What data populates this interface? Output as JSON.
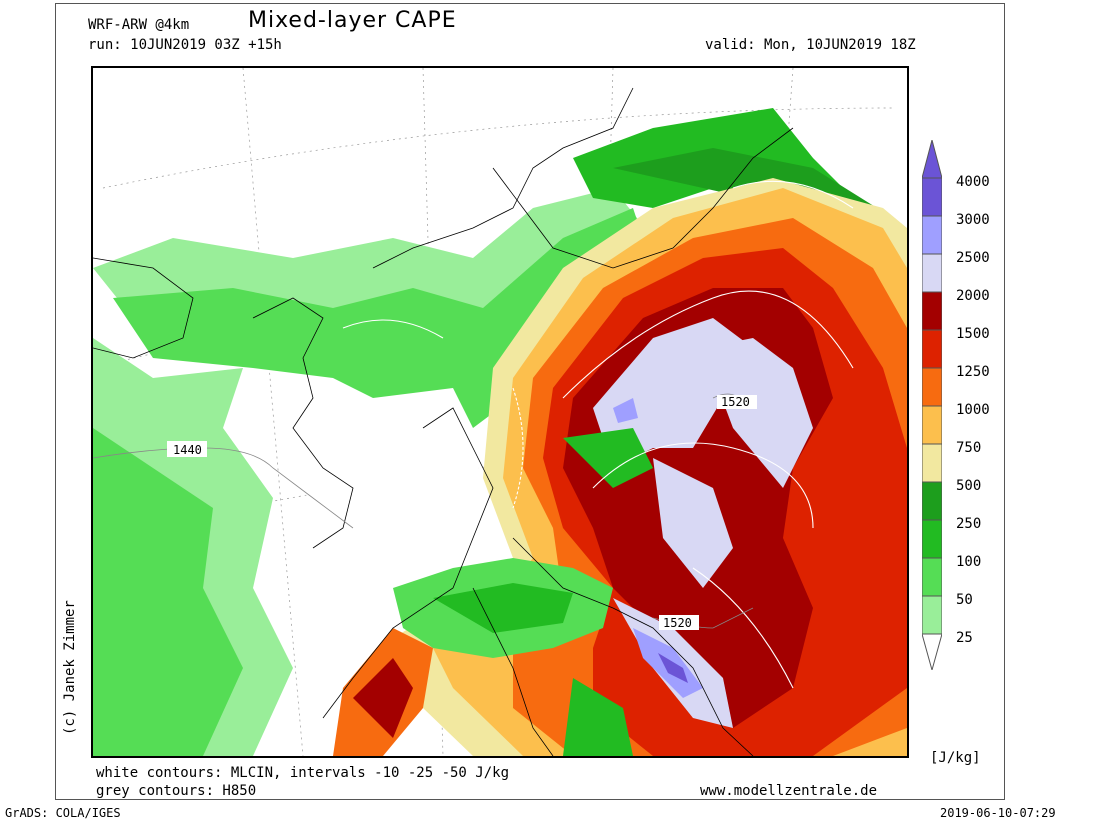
{
  "header": {
    "model": "WRF-ARW @4km",
    "title": "Mixed-layer CAPE",
    "run": "run: 10JUN2019 03Z +15h",
    "valid": "valid: Mon, 10JUN2019 18Z"
  },
  "map": {
    "contour_labels": [
      "1440",
      "1520",
      "1520"
    ],
    "colors": {
      "c25": "#ccf7cc",
      "c50": "#99ee99",
      "c100": "#55dd55",
      "c250": "#22bb22",
      "c500": "#1d9e1d",
      "c750": "#f2e8a0",
      "c1000": "#fcbf4d",
      "c1250": "#f76b10",
      "c1500": "#dd2200",
      "c2000": "#a30000",
      "c2500": "#d8d8f4",
      "c3000": "#9f9fff",
      "c4000": "#6b54d6"
    }
  },
  "colorbar": {
    "labels": [
      "4000",
      "3000",
      "2500",
      "2000",
      "1500",
      "1250",
      "1000",
      "750",
      "500",
      "250",
      "100",
      "50",
      "25"
    ],
    "unit": "[J/kg]"
  },
  "footer": {
    "white_contours": "white contours: MLCIN, intervals -10 -25 -50 J/kg",
    "grey_contours": "grey contours: H850",
    "website": "www.modellzentrale.de",
    "credit": "(c) Janek Zimmer",
    "grads": "GrADS: COLA/IGES",
    "timestamp": "2019-06-10-07:29"
  }
}
